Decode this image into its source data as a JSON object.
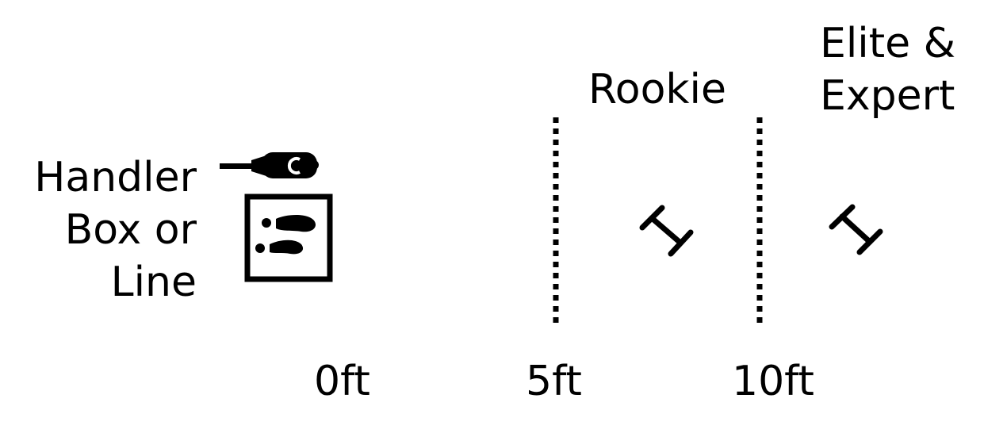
{
  "labels": {
    "handler_line1": "Handler",
    "handler_line2": "Box or",
    "handler_line3": "Line",
    "rookie": "Rookie",
    "elite_line1": "Elite &",
    "elite_line2": "Expert"
  },
  "distance_ticks": [
    "0ft",
    "5ft",
    "10ft"
  ],
  "icons": {
    "leash": "leash-icon",
    "handler_box": "handler-box-icon",
    "footprints": "footprints-icon",
    "dumbbell_rookie": "dumbbell-icon",
    "dumbbell_elite": "dumbbell-icon"
  },
  "colors": {
    "ink": "#000000",
    "background": "#ffffff"
  }
}
